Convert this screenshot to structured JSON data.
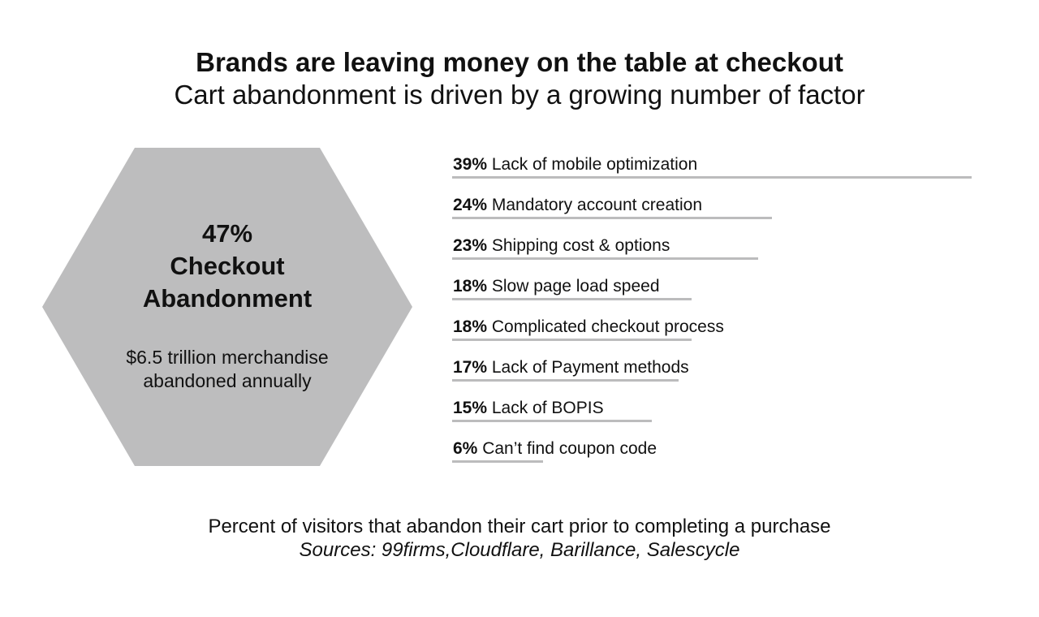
{
  "chart_data": {
    "type": "bar",
    "title": "Brands are leaving money on the table at checkout",
    "subtitle": "Cart abandonment is driven by a growing number of factor",
    "highlight": {
      "value": "47%",
      "label_line1": "Checkout",
      "label_line2": "Abandonment",
      "note_line1": "$6.5 trillion merchandise",
      "note_line2": "abandoned annually",
      "shape": "hexagon",
      "color": "#bdbdbe"
    },
    "bar_color": "#bcbcbd",
    "unit": "%",
    "categories": [
      "Lack of mobile optimization",
      "Mandatory account creation",
      "Shipping cost & options",
      "Slow page load speed",
      "Complicated checkout process",
      "Lack of Payment methods",
      "Lack of BOPIS",
      "Can’t find coupon code"
    ],
    "values": [
      39,
      24,
      23,
      18,
      18,
      17,
      15,
      6
    ],
    "caption": "Percent of visitors that abandon their cart prior to completing a purchase",
    "sources": "Sources: 99firms,Cloudflare, Barillance, Salescycle"
  }
}
